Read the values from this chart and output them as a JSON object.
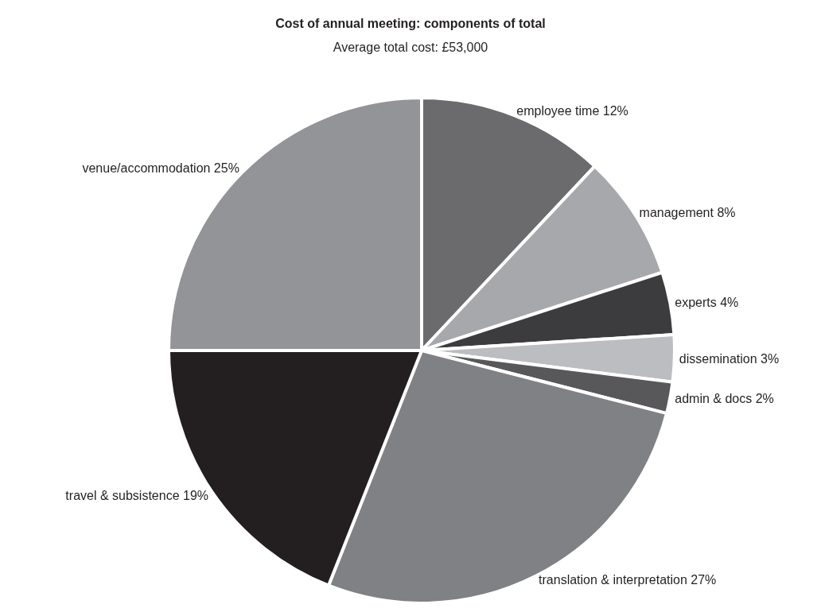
{
  "chart_data": {
    "type": "pie",
    "title": "Cost of annual meeting: components of total",
    "subtitle": "Average total cost: £53,000",
    "categories": [
      "employee time",
      "management",
      "experts",
      "dissemination",
      "admin & docs",
      "translation & interpretation",
      "travel & subsistence",
      "venue/accommodation"
    ],
    "values": [
      12,
      8,
      4,
      3,
      2,
      27,
      19,
      25
    ],
    "value_labels": [
      "12%",
      "8%",
      "4%",
      "3%",
      "2%",
      "27%",
      "19%",
      "25%"
    ],
    "colors": [
      "#6b6b6e",
      "#a7a8ab",
      "#3c3c3e",
      "#bcbdc0",
      "#58585a",
      "#808185",
      "#231f20",
      "#939497"
    ],
    "legend": false
  }
}
